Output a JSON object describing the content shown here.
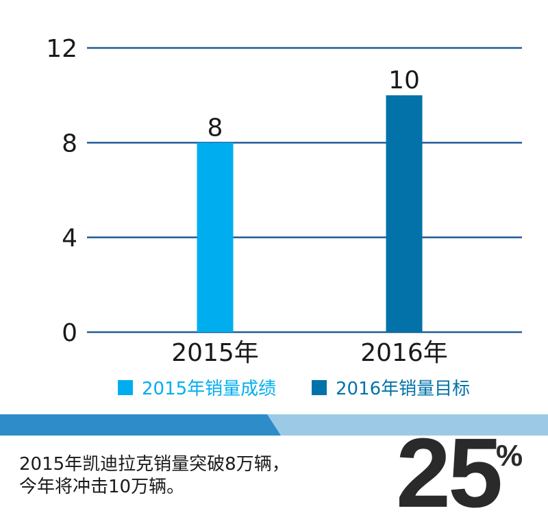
{
  "chart_data": {
    "type": "bar",
    "categories": [
      "2015年",
      "2016年"
    ],
    "values": [
      8,
      10
    ],
    "data_labels": [
      "8",
      "10"
    ],
    "ylim": [
      0,
      12
    ],
    "yticks": [
      0,
      4,
      8,
      12
    ],
    "grid": true,
    "bar_colors": [
      "#00AEEF",
      "#0272A8"
    ],
    "legend": [
      {
        "label": "2015年销量成绩",
        "color": "#00AEEF"
      },
      {
        "label": "2016年销量目标",
        "color": "#0272A8"
      }
    ],
    "legend_placement": "bottom"
  },
  "colors": {
    "grid": "#1F5A96",
    "banner_dark": "#2E8CC8",
    "banner_light": "#9CCAE6",
    "text": "#1a1a1a"
  },
  "caption": {
    "line1": "2015年凯迪拉克销量突破8万辆，",
    "line2": "今年将冲击10万辆。"
  },
  "highlight": {
    "number": "25",
    "unit": "%"
  }
}
